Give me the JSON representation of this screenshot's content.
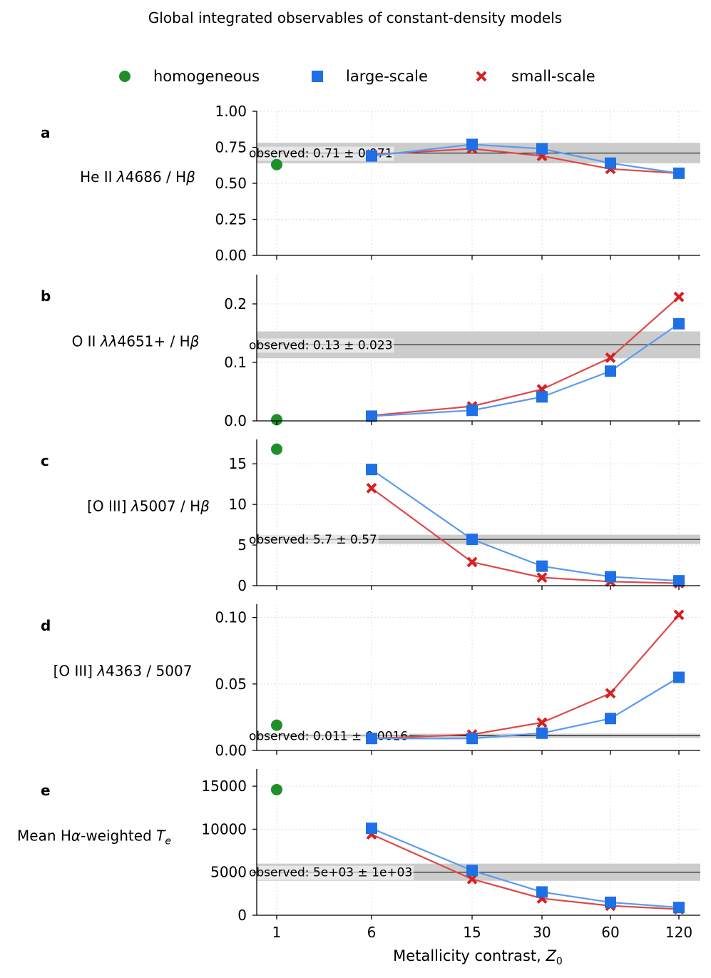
{
  "figure": {
    "title": "Global integrated observables of constant-density models",
    "legend": [
      {
        "label": "homogeneous",
        "marker": "circle",
        "color": "#1f8f2a"
      },
      {
        "label": "large-scale",
        "marker": "square",
        "color": "#1f6fe5"
      },
      {
        "label": "small-scale",
        "marker": "x",
        "color": "#d62020"
      }
    ],
    "xlabel": "Metallicity contrast, ",
    "xlabel_var": "Z",
    "xlabel_sub": "0"
  },
  "colors": {
    "homogeneous": "#1f8f2a",
    "large_marker": "#1f6fe5",
    "large_line": "#5b9bf0",
    "small_marker": "#d62020",
    "small_line": "#e04848",
    "band": "#cccccc",
    "grid": "#dddddd"
  },
  "chart_data": [
    {
      "type": "scatter",
      "panel": "a",
      "ylabel_parts": [
        [
          "He II ",
          "n"
        ],
        [
          "λ",
          "i"
        ],
        [
          "4686 / H",
          "n"
        ],
        [
          "β",
          "i"
        ]
      ],
      "x": [
        "1",
        "6",
        "15",
        "30",
        "60",
        "120"
      ],
      "ylim": [
        0,
        1.0
      ],
      "yticks": [
        0,
        0.25,
        0.5,
        0.75,
        1.0
      ],
      "ytick_labels": [
        "0.00",
        "0.25",
        "0.50",
        "0.75",
        "1.00"
      ],
      "homogeneous": 0.63,
      "large_scale": [
        null,
        0.69,
        0.77,
        0.74,
        0.64,
        0.57
      ],
      "small_scale": [
        null,
        0.7,
        0.74,
        0.69,
        0.6,
        0.57
      ],
      "observed": {
        "value": 0.71,
        "error": 0.071,
        "label": "observed: 0.71 ± 0.071"
      }
    },
    {
      "type": "scatter",
      "panel": "b",
      "ylabel_parts": [
        [
          "O II ",
          "n"
        ],
        [
          "λλ",
          "i"
        ],
        [
          "4651+ / H",
          "n"
        ],
        [
          "β",
          "i"
        ]
      ],
      "x": [
        "1",
        "6",
        "15",
        "30",
        "60",
        "120"
      ],
      "ylim": [
        0,
        0.25
      ],
      "yticks": [
        0,
        0.1,
        0.2
      ],
      "ytick_labels": [
        "0.0",
        "0.1",
        "0.2"
      ],
      "homogeneous": 0.002,
      "large_scale": [
        null,
        0.008,
        0.018,
        0.041,
        0.085,
        0.166
      ],
      "small_scale": [
        null,
        0.009,
        0.025,
        0.054,
        0.108,
        0.212
      ],
      "observed": {
        "value": 0.13,
        "error": 0.023,
        "label": "observed: 0.13 ± 0.023"
      }
    },
    {
      "type": "scatter",
      "panel": "c",
      "ylabel_parts": [
        [
          "[O III] ",
          "n"
        ],
        [
          "λ",
          "i"
        ],
        [
          "5007 / H",
          "n"
        ],
        [
          "β",
          "i"
        ]
      ],
      "x": [
        "1",
        "6",
        "15",
        "30",
        "60",
        "120"
      ],
      "ylim": [
        0,
        18
      ],
      "yticks": [
        0,
        5,
        10,
        15
      ],
      "ytick_labels": [
        "0",
        "5",
        "10",
        "15"
      ],
      "homogeneous": 16.8,
      "large_scale": [
        null,
        14.3,
        5.7,
        2.4,
        1.1,
        0.6
      ],
      "small_scale": [
        null,
        12.0,
        2.9,
        1.0,
        0.5,
        0.3
      ],
      "observed": {
        "value": 5.7,
        "error": 0.57,
        "label": "observed: 5.7 ± 0.57"
      }
    },
    {
      "type": "scatter",
      "panel": "d",
      "ylabel_parts": [
        [
          "[O III] ",
          "n"
        ],
        [
          "λ",
          "i"
        ],
        [
          "4363 / 5007",
          "n"
        ]
      ],
      "x": [
        "1",
        "6",
        "15",
        "30",
        "60",
        "120"
      ],
      "ylim": [
        0,
        0.11
      ],
      "yticks": [
        0,
        0.05,
        0.1
      ],
      "ytick_labels": [
        "0.00",
        "0.05",
        "0.10"
      ],
      "homogeneous": 0.019,
      "large_scale": [
        null,
        0.009,
        0.009,
        0.013,
        0.024,
        0.055
      ],
      "small_scale": [
        null,
        0.009,
        0.012,
        0.021,
        0.043,
        0.102
      ],
      "observed": {
        "value": 0.011,
        "error": 0.0016,
        "label": "observed: 0.011 ± 0.0016"
      }
    },
    {
      "type": "scatter",
      "panel": "e",
      "ylabel_parts": [
        [
          "Mean H",
          "n"
        ],
        [
          "α",
          "i"
        ],
        [
          "-weighted ",
          "n"
        ],
        [
          "T",
          "i"
        ],
        [
          "e",
          "isub"
        ]
      ],
      "x": [
        "1",
        "6",
        "15",
        "30",
        "60",
        "120"
      ],
      "ylim": [
        0,
        17000
      ],
      "yticks": [
        0,
        5000,
        10000,
        15000
      ],
      "ytick_labels": [
        "0",
        "5000",
        "10000",
        "15000"
      ],
      "homogeneous": 14600,
      "large_scale": [
        null,
        10100,
        5200,
        2700,
        1500,
        900
      ],
      "small_scale": [
        null,
        9400,
        4200,
        1950,
        1100,
        700
      ],
      "observed": {
        "value": 5000,
        "error": 1000,
        "label": "observed: 5e+03 ± 1e+03"
      }
    }
  ]
}
